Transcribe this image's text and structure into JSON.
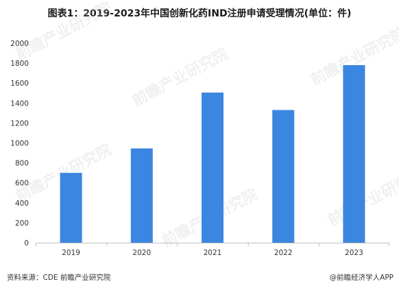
{
  "title": "图表1：2019-2023年中国创新化药IND注册申请受理情况(单位：件)",
  "footer": {
    "source": "资料来源：CDE 前瞻产业研究院",
    "credit": "@前瞻经济学人APP"
  },
  "watermark": "前瞻产业研究院",
  "colors": {
    "bar": "#3b86e0",
    "axis": "#bfbfbf",
    "text": "#333333"
  },
  "chart_data": {
    "type": "bar",
    "categories": [
      "2019",
      "2020",
      "2021",
      "2022",
      "2023"
    ],
    "values": [
      700,
      945,
      1505,
      1330,
      1780
    ],
    "ylim": [
      0,
      2000
    ],
    "yticks": [
      0,
      200,
      400,
      600,
      800,
      1000,
      1200,
      1400,
      1600,
      1800,
      2000
    ],
    "grid": false,
    "legend": "none"
  }
}
